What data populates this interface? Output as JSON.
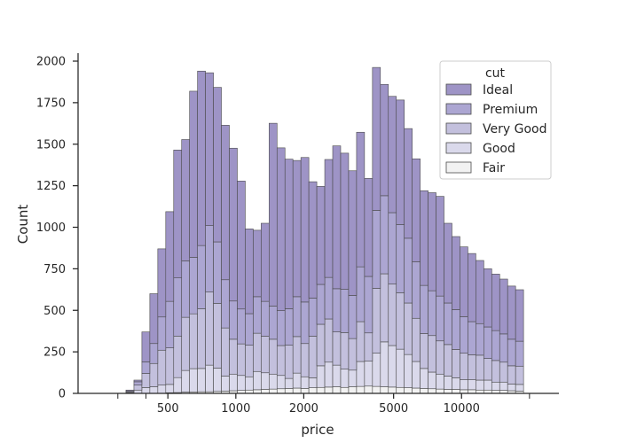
{
  "chart_data": {
    "type": "bar",
    "subtype": "stacked-histogram",
    "title": "",
    "xlabel": "price",
    "ylabel": "Count",
    "xscale": "log",
    "xlim": [
      200,
      27000
    ],
    "ylim": [
      0,
      2080
    ],
    "yticks": [
      0,
      250,
      500,
      750,
      1000,
      1250,
      1500,
      1750,
      2000
    ],
    "xticks": [
      500,
      1000,
      2000,
      5000,
      10000
    ],
    "xtick_labels": [
      "500",
      "1000",
      "2000",
      "5000",
      "10000"
    ],
    "grid": false,
    "bins": 50,
    "bin_range": [
      326,
      18823
    ],
    "legend": {
      "title": "cut",
      "placement": "top-right"
    },
    "series": [
      {
        "name": "Fair",
        "color": "#f2f2f2",
        "values": [
          0,
          0,
          0,
          0,
          0,
          4,
          5,
          8,
          9,
          10,
          10,
          12,
          14,
          16,
          18,
          20,
          22,
          24,
          26,
          28,
          30,
          32,
          30,
          34,
          36,
          38,
          40,
          36,
          40,
          42,
          44,
          42,
          40,
          38,
          36,
          34,
          32,
          30,
          28,
          26,
          24,
          24,
          22,
          22,
          20,
          20,
          18,
          18,
          16,
          14
        ]
      },
      {
        "name": "Good",
        "color": "#dad9eb",
        "values": [
          5,
          20,
          35,
          40,
          50,
          50,
          90,
          130,
          140,
          140,
          160,
          140,
          90,
          100,
          90,
          80,
          110,
          100,
          90,
          80,
          60,
          90,
          70,
          60,
          130,
          150,
          130,
          110,
          100,
          150,
          150,
          200,
          270,
          250,
          230,
          200,
          160,
          120,
          100,
          90,
          80,
          70,
          60,
          60,
          60,
          60,
          50,
          50,
          40,
          40
        ]
      },
      {
        "name": "Very Good",
        "color": "#c3c0dd",
        "values": [
          5,
          30,
          85,
          140,
          210,
          220,
          250,
          320,
          330,
          360,
          440,
          390,
          290,
          210,
          190,
          190,
          230,
          220,
          210,
          180,
          200,
          220,
          200,
          250,
          250,
          260,
          200,
          220,
          190,
          240,
          170,
          390,
          410,
          370,
          340,
          310,
          260,
          210,
          220,
          200,
          190,
          170,
          160,
          150,
          150,
          130,
          130,
          120,
          110,
          110
        ]
      },
      {
        "name": "Premium",
        "color": "#aca6d2",
        "values": [
          5,
          20,
          70,
          120,
          200,
          280,
          350,
          340,
          340,
          380,
          400,
          370,
          290,
          230,
          210,
          190,
          220,
          210,
          200,
          210,
          220,
          240,
          250,
          230,
          240,
          250,
          260,
          260,
          260,
          330,
          340,
          470,
          470,
          430,
          410,
          390,
          340,
          290,
          270,
          270,
          250,
          240,
          220,
          200,
          190,
          190,
          180,
          170,
          160,
          150
        ]
      },
      {
        "name": "Ideal",
        "color": "#9e94c6",
        "values": [
          5,
          10,
          180,
          300,
          410,
          540,
          770,
          730,
          1000,
          1050,
          920,
          930,
          930,
          920,
          770,
          510,
          400,
          470,
          1100,
          980,
          900,
          820,
          870,
          700,
          590,
          710,
          860,
          820,
          750,
          810,
          590,
          860,
          670,
          700,
          750,
          660,
          620,
          570,
          590,
          600,
          480,
          440,
          420,
          410,
          380,
          350,
          340,
          330,
          320,
          310
        ]
      }
    ]
  }
}
